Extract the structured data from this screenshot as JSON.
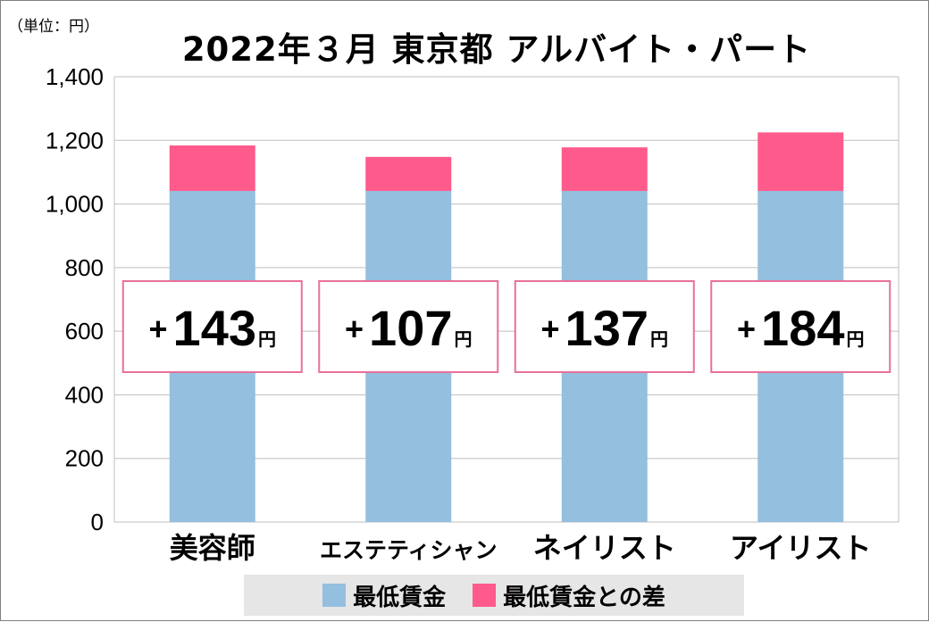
{
  "unit_note": "（単位：円）",
  "title": "2022年３月 東京都 アルバイト・パート",
  "colors": {
    "base": "#94bfde",
    "diff": "#ff5a8c",
    "box_border": "#e8709a",
    "grid": "#bfbfbf",
    "legend_bg": "#e6e6e6"
  },
  "legend": [
    {
      "label": "最低賃金",
      "color": "#94bfde"
    },
    {
      "label": "最低賃金との差",
      "color": "#ff5a8c"
    }
  ],
  "annotations": [
    {
      "sign": "+",
      "value": "143",
      "unit": "円"
    },
    {
      "sign": "+",
      "value": "107",
      "unit": "円"
    },
    {
      "sign": "+",
      "value": "137",
      "unit": "円"
    },
    {
      "sign": "+",
      "value": "184",
      "unit": "円"
    }
  ],
  "chart_data": {
    "type": "bar",
    "stacked": true,
    "title": "2022年３月 東京都 アルバイト・パート",
    "ylabel": "（単位：円）",
    "categories": [
      "美容師",
      "エステティシャン",
      "ネイリスト",
      "アイリスト"
    ],
    "series": [
      {
        "name": "最低賃金",
        "values": [
          1041,
          1041,
          1041,
          1041
        ]
      },
      {
        "name": "最低賃金との差",
        "values": [
          143,
          107,
          137,
          184
        ]
      }
    ],
    "ylim": [
      0,
      1400
    ],
    "yticks": [
      0,
      200,
      400,
      600,
      800,
      1000,
      1200,
      1400
    ],
    "ytick_labels": [
      "0",
      "200",
      "400",
      "600",
      "800",
      "1,000",
      "1,200",
      "1,400"
    ],
    "grid": true,
    "legend_position": "bottom"
  }
}
